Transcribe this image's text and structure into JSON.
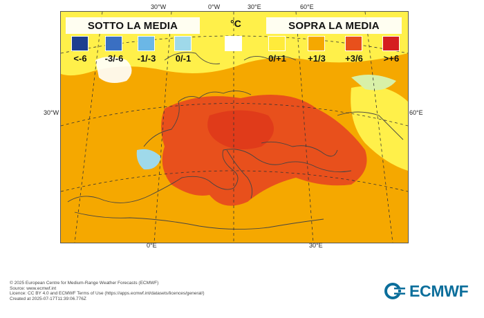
{
  "map": {
    "grid_labels": {
      "top": [
        "30°W",
        "0°W",
        "30°E",
        "60°E"
      ],
      "left": "30°W",
      "right": "60°E",
      "bottom": [
        "0°E",
        "30°E"
      ]
    }
  },
  "legend": {
    "below_title": "SOTTO LA MEDIA",
    "above_title": "SOPRA LA MEDIA",
    "unit": "°C",
    "classes": [
      {
        "label": "<-6",
        "color": "#1d3f8f"
      },
      {
        "label": "-3/-6",
        "color": "#3a6fc2"
      },
      {
        "label": "-1/-3",
        "color": "#6bb7e6"
      },
      {
        "label": "0/-1",
        "color": "#9fd9ea"
      },
      {
        "label": "",
        "color": "#ffffff"
      },
      {
        "label": "0/+1",
        "color": "#ffeb3b"
      },
      {
        "label": "+1/3",
        "color": "#f5a800"
      },
      {
        "label": "+3/6",
        "color": "#e8501c"
      },
      {
        "label": ">+6",
        "color": "#d51f1f"
      }
    ]
  },
  "footer": {
    "lines": [
      "© 2025 European Centre for Medium-Range Weather Forecasts (ECMWF)",
      "Source: www.ecmwf.int",
      "Licence: CC BY 4.0 and ECMWF Terms of Use (https://apps.ecmwf.int/datasets/licences/general/)",
      "Created at 2025-07-17T11:39:06.776Z"
    ]
  },
  "logo": {
    "text": "ECMWF",
    "color": "#0b6e9b"
  }
}
